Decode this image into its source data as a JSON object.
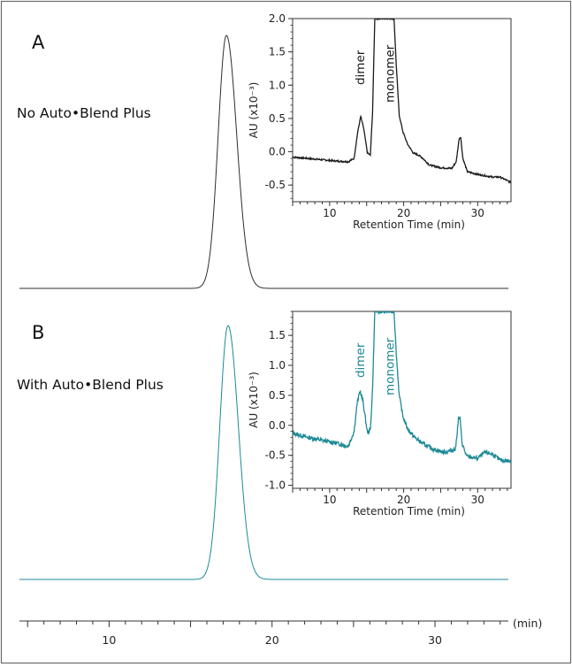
{
  "panels": [
    {
      "letter": "A",
      "label": "No Auto•Blend Plus",
      "color": "#333333"
    },
    {
      "letter": "B",
      "label": "With Auto•Blend Plus",
      "color": "#1c8a96"
    }
  ],
  "main_axis": {
    "unit": "(min)",
    "ticks": [
      10,
      20,
      30
    ],
    "range": [
      4.5,
      34.5
    ]
  },
  "chart_data": [
    {
      "type": "line",
      "title": "A",
      "series": [
        {
          "name": "",
          "peaks": [
            {
              "x": 17.2,
              "height": 1.0,
              "width": 0.55
            }
          ],
          "baseline": 0
        }
      ],
      "xlabel": "(min)",
      "ylabel": "",
      "xlim": [
        4.5,
        34.5
      ],
      "xticks": [
        10,
        20,
        30
      ]
    },
    {
      "type": "line",
      "title": "A inset",
      "xlabel": "Retention Time (min)",
      "ylabel": "AU (x10⁻³)",
      "xlim": [
        5,
        34.5
      ],
      "ylim": [
        -0.75,
        2.0
      ],
      "xticks": [
        10,
        20,
        30
      ],
      "yticks": [
        2.0,
        1.5,
        1.0,
        0.5,
        0.0,
        -0.5
      ],
      "ytick_labels": [
        "2.0",
        "1.5",
        "1.0",
        "0.5",
        "0.0",
        "-0.5"
      ],
      "annotations": [
        {
          "text": "dimer",
          "x": 14.2
        },
        {
          "text": "monomer",
          "x": 18.2
        }
      ],
      "series": [
        {
          "name": "",
          "points": [
            [
              5,
              -0.08
            ],
            [
              7,
              -0.1
            ],
            [
              9,
              -0.12
            ],
            [
              11,
              -0.14
            ],
            [
              12.5,
              -0.15
            ],
            [
              13.3,
              -0.1
            ],
            [
              13.8,
              0.3
            ],
            [
              14.2,
              0.53
            ],
            [
              14.6,
              0.35
            ],
            [
              15.1,
              -0.02
            ],
            [
              15.5,
              -0.05
            ],
            [
              15.8,
              0.6
            ],
            [
              16.1,
              2.0
            ],
            [
              18.7,
              2.0
            ],
            [
              19.0,
              1.3
            ],
            [
              19.4,
              0.55
            ],
            [
              19.9,
              0.3
            ],
            [
              20.5,
              0.12
            ],
            [
              21.3,
              -0.02
            ],
            [
              22.0,
              -0.05
            ],
            [
              22.5,
              -0.09
            ],
            [
              23.5,
              -0.2
            ],
            [
              25,
              -0.24
            ],
            [
              26.5,
              -0.25
            ],
            [
              27.1,
              -0.15
            ],
            [
              27.5,
              0.2
            ],
            [
              27.7,
              0.22
            ],
            [
              28.0,
              -0.1
            ],
            [
              28.6,
              -0.3
            ],
            [
              30,
              -0.34
            ],
            [
              32,
              -0.38
            ],
            [
              33,
              -0.38
            ],
            [
              34.5,
              -0.46
            ]
          ]
        }
      ]
    },
    {
      "type": "line",
      "title": "B",
      "series": [
        {
          "name": "",
          "peaks": [
            {
              "x": 17.3,
              "height": 1.0,
              "width": 0.55
            }
          ],
          "baseline": 0
        }
      ],
      "xlabel": "(min)",
      "ylabel": "",
      "xlim": [
        4.5,
        34.5
      ],
      "xticks": [
        10,
        20,
        30
      ]
    },
    {
      "type": "line",
      "title": "B inset",
      "xlabel": "Retention Time (min)",
      "ylabel": "AU (x10⁻³)",
      "xlim": [
        5,
        34.5
      ],
      "ylim": [
        -1.05,
        1.9
      ],
      "xticks": [
        10,
        20,
        30
      ],
      "yticks": [
        1.5,
        1.0,
        0.5,
        0.0,
        -0.5,
        -1.0
      ],
      "ytick_labels": [
        "1.5",
        "1.0",
        "0.5",
        "0.0",
        "-0.5",
        "-1.0"
      ],
      "annotations": [
        {
          "text": "dimer",
          "x": 14.2
        },
        {
          "text": "monomer",
          "x": 18.2
        }
      ],
      "series": [
        {
          "name": "",
          "points": [
            [
              5,
              -0.13
            ],
            [
              7,
              -0.2
            ],
            [
              9,
              -0.25
            ],
            [
              11,
              -0.3
            ],
            [
              12.5,
              -0.35
            ],
            [
              13.3,
              -0.1
            ],
            [
              13.7,
              0.35
            ],
            [
              14.1,
              0.58
            ],
            [
              14.5,
              0.4
            ],
            [
              15.1,
              -0.12
            ],
            [
              15.5,
              -0.08
            ],
            [
              15.8,
              0.6
            ],
            [
              16.1,
              1.9
            ],
            [
              18.7,
              1.9
            ],
            [
              19.0,
              1.2
            ],
            [
              19.4,
              0.5
            ],
            [
              19.9,
              0.15
            ],
            [
              20.5,
              -0.05
            ],
            [
              21.3,
              -0.18
            ],
            [
              22.5,
              -0.3
            ],
            [
              24,
              -0.4
            ],
            [
              25.5,
              -0.45
            ],
            [
              27.0,
              -0.4
            ],
            [
              27.4,
              0.1
            ],
            [
              27.6,
              0.12
            ],
            [
              27.9,
              -0.3
            ],
            [
              28.5,
              -0.52
            ],
            [
              30,
              -0.55
            ],
            [
              31,
              -0.45
            ],
            [
              32,
              -0.48
            ],
            [
              33,
              -0.58
            ],
            [
              34.5,
              -0.6
            ]
          ]
        }
      ]
    }
  ]
}
